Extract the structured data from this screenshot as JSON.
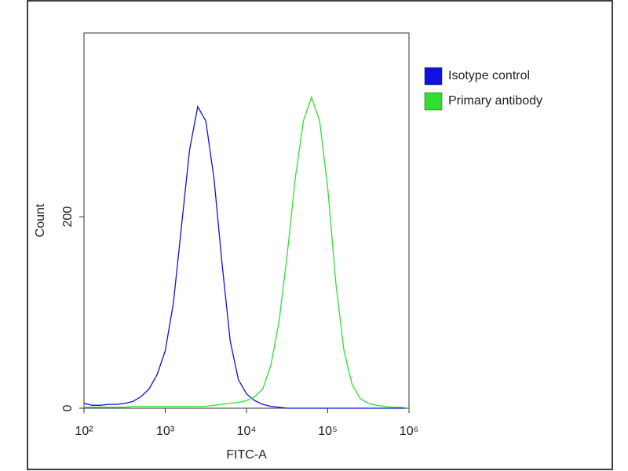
{
  "chart_data": {
    "type": "line",
    "xlabel": "FITC-A",
    "ylabel": "Count",
    "xscale": "log",
    "xlim": [
      100,
      1000000
    ],
    "xticks": [
      {
        "value": 100,
        "label": "10²"
      },
      {
        "value": 1000,
        "label": "10³"
      },
      {
        "value": 10000,
        "label": "10⁴"
      },
      {
        "value": 100000,
        "label": "10⁵"
      },
      {
        "value": 1000000,
        "label": "10⁶"
      }
    ],
    "ylim": [
      0,
      392
    ],
    "yticks": [
      0,
      200
    ],
    "legend": "right",
    "x": [
      100,
      126,
      158,
      200,
      251,
      316,
      398,
      501,
      631,
      794,
      1000,
      1259,
      1585,
      1995,
      2512,
      3162,
      3981,
      5012,
      6310,
      7943,
      10000,
      12589,
      15849,
      19953,
      25119,
      31623,
      39811,
      50119,
      63096,
      79433,
      100000,
      125893,
      158489,
      199526,
      251189,
      316228,
      398107,
      501187,
      630957,
      794328,
      1000000
    ],
    "series": [
      {
        "name": "Isotype control",
        "color": "#1010e0",
        "values": [
          5,
          3,
          3,
          4,
          4,
          5,
          7,
          12,
          20,
          35,
          60,
          110,
          190,
          270,
          315,
          300,
          240,
          150,
          70,
          30,
          15,
          8,
          4,
          2,
          1,
          0,
          0,
          0,
          0,
          0,
          0,
          0,
          0,
          0,
          0,
          0,
          0,
          0,
          0,
          0,
          0
        ]
      },
      {
        "name": "Primary antibody",
        "color": "#30e030",
        "values": [
          1,
          1,
          1,
          1,
          1,
          1,
          2,
          2,
          2,
          2,
          2,
          2,
          2,
          2,
          2,
          2,
          3,
          4,
          5,
          6,
          8,
          12,
          20,
          45,
          90,
          160,
          240,
          300,
          325,
          300,
          230,
          130,
          60,
          25,
          10,
          5,
          3,
          2,
          1,
          1,
          0
        ]
      }
    ]
  }
}
